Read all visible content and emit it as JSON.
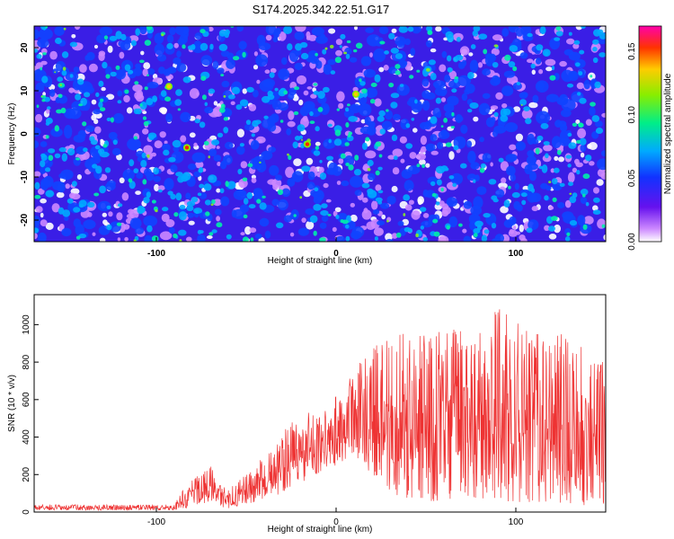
{
  "title": "S174.2025.342.22.51.G17",
  "chart_data": [
    {
      "type": "heatmap",
      "xlabel": "Height of straight line (km)",
      "ylabel": "Frequency (Hz)",
      "xlim": [
        -168,
        150
      ],
      "ylim": [
        -25,
        25
      ],
      "xticks": [
        -100,
        0,
        100
      ],
      "yticks": [
        -20,
        -10,
        0,
        10,
        20
      ],
      "colorbar": {
        "label": "Normalized spectral amplitude",
        "range": [
          0,
          0.17
        ],
        "ticks": [
          "0.00",
          "0.05",
          "0.10",
          "0.15"
        ]
      },
      "hotspots": [
        {
          "x": -83,
          "y": -3.2,
          "value": 0.16
        },
        {
          "x": -16,
          "y": -2.4,
          "value": 0.15
        },
        {
          "x": 11,
          "y": 9.2,
          "value": 0.1
        },
        {
          "x": -93,
          "y": 11,
          "value": 0.09
        }
      ]
    },
    {
      "type": "line",
      "xlabel": "Height of straight line (km)",
      "ylabel": "SNR (10 * v/v)",
      "xlim": [
        -168,
        150
      ],
      "ylim": [
        0,
        1160
      ],
      "xticks": [
        -100,
        0,
        100
      ],
      "yticks": [
        0,
        200,
        400,
        600,
        800,
        1000
      ],
      "color": "#ee3333",
      "envelope": {
        "x": [
          -168,
          -90,
          -85,
          -75,
          -70,
          -65,
          -60,
          -50,
          -40,
          -30,
          -25,
          -20,
          -15,
          -10,
          0,
          10,
          20,
          30,
          50,
          70,
          90,
          110,
          130,
          150
        ],
        "upper": [
          40,
          40,
          120,
          220,
          260,
          150,
          120,
          200,
          300,
          400,
          550,
          420,
          580,
          500,
          620,
          780,
          900,
          1000,
          950,
          980,
          1100,
          950,
          960,
          800
        ],
        "lower": [
          10,
          10,
          20,
          40,
          60,
          30,
          20,
          40,
          70,
          100,
          140,
          150,
          180,
          200,
          250,
          300,
          200,
          100,
          50,
          80,
          60,
          50,
          40,
          30
        ]
      }
    }
  ]
}
